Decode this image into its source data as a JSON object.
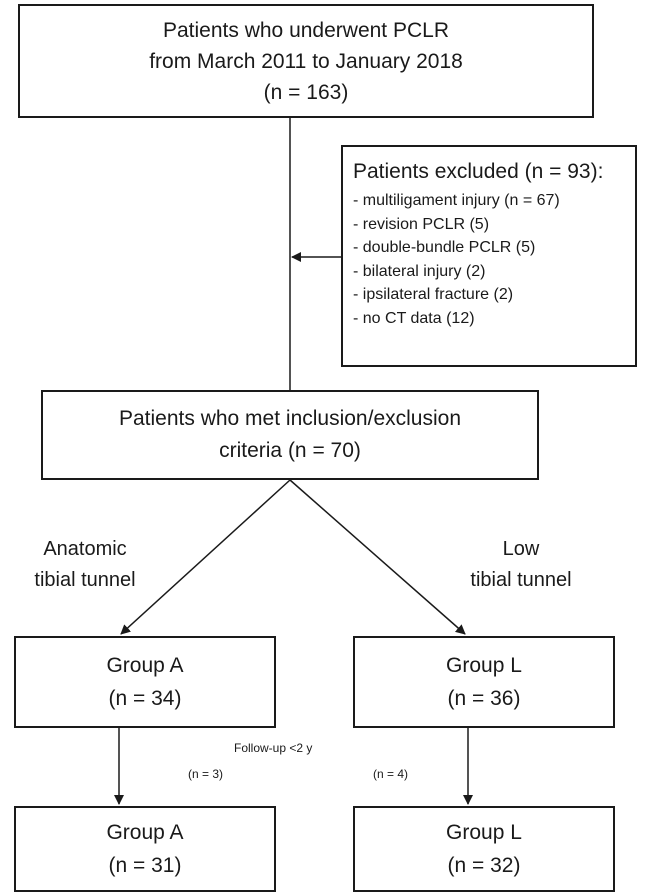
{
  "top_box": {
    "lines": [
      "Patients who underwent PCLR",
      "from March 2011 to January 2018",
      "(n = 163)"
    ]
  },
  "excluded_box": {
    "title": "Patients excluded (n = 93):",
    "items": [
      "- multiligament injury (n = 67)",
      "- revision PCLR (5)",
      "- double-bundle PCLR (5)",
      "- bilateral injury (2)",
      "- ipsilateral fracture (2)",
      "- no CT data (12)"
    ]
  },
  "inclusion_box": {
    "lines": [
      "Patients who met inclusion/exclusion",
      "criteria (n = 70)"
    ]
  },
  "branches": {
    "left": [
      "Anatomic",
      "tibial tunnel"
    ],
    "right": [
      "Low",
      "tibial tunnel"
    ]
  },
  "groups_initial": {
    "a": {
      "name": "Group A",
      "n": "(n = 34)"
    },
    "l": {
      "name": "Group L",
      "n": "(n = 36)"
    }
  },
  "follow_up": {
    "label": "Follow-up <2 y",
    "left_n": "(n = 3)",
    "right_n": "(n = 4)"
  },
  "groups_final": {
    "a": {
      "name": "Group A",
      "n": "(n = 31)"
    },
    "l": {
      "name": "Group L",
      "n": "(n = 32)"
    }
  }
}
